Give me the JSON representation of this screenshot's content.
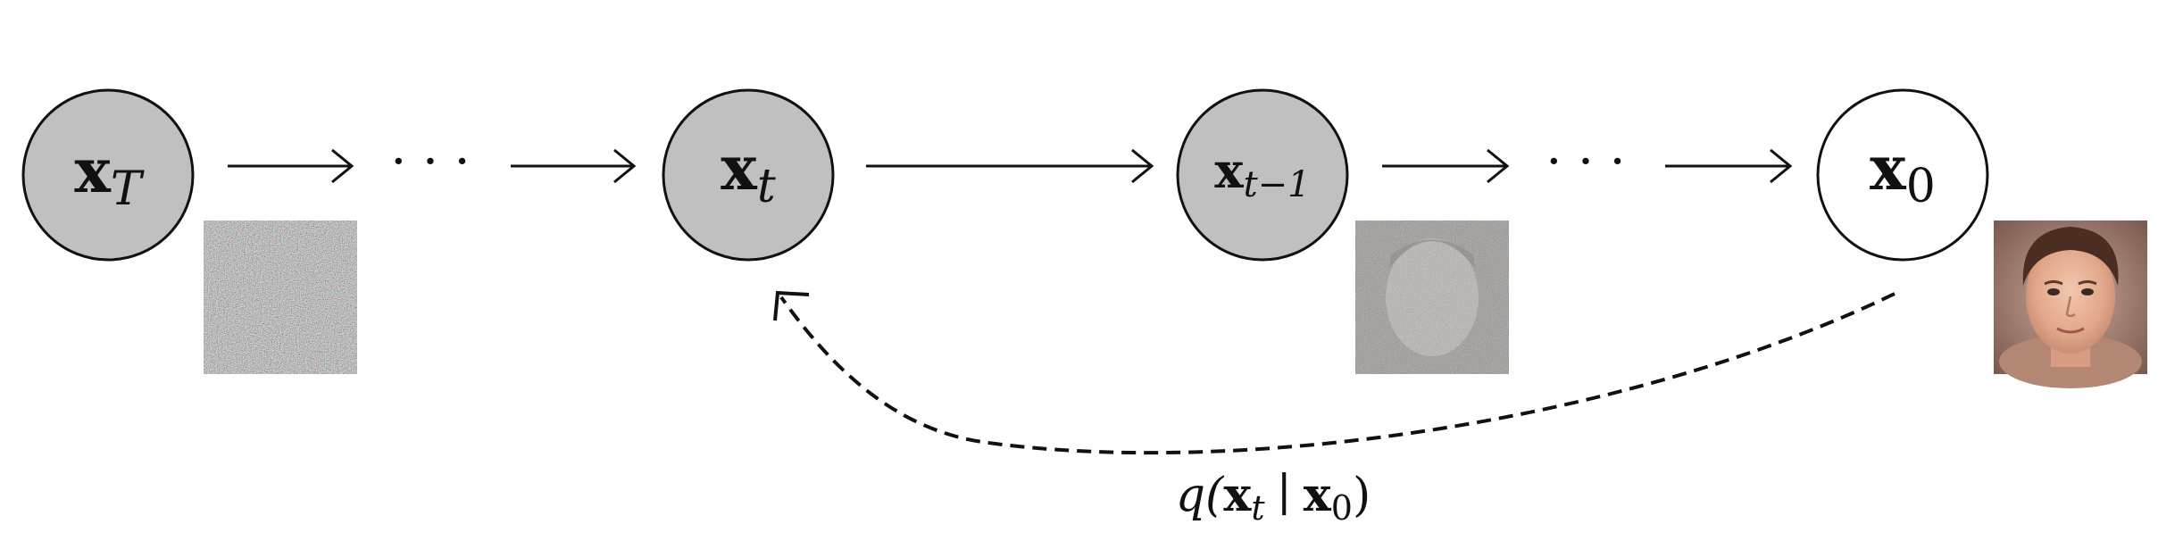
{
  "nodes": [
    {
      "id": "xT",
      "main": "x",
      "sub": "T",
      "fill": "#c0c0c0"
    },
    {
      "id": "xt",
      "main": "x",
      "sub": "t",
      "fill": "#c0c0c0"
    },
    {
      "id": "xtm1",
      "main": "x",
      "sub": "t−1",
      "fill": "#c0c0c0"
    },
    {
      "id": "x0",
      "main": "x",
      "sub": "0",
      "fill": "#ffffff"
    }
  ],
  "ellipsis": "· · ·",
  "forward_process_label": {
    "func": "q(",
    "arg1_main": "x",
    "arg1_sub": "t",
    "bar": "∣",
    "arg2_main": "x",
    "arg2_sub": "0",
    "close": ")"
  },
  "images": [
    {
      "name": "pure-noise-image",
      "description": "noise"
    },
    {
      "name": "noisy-face-image",
      "description": "noisy face"
    },
    {
      "name": "clean-face-image",
      "description": "face"
    }
  ]
}
